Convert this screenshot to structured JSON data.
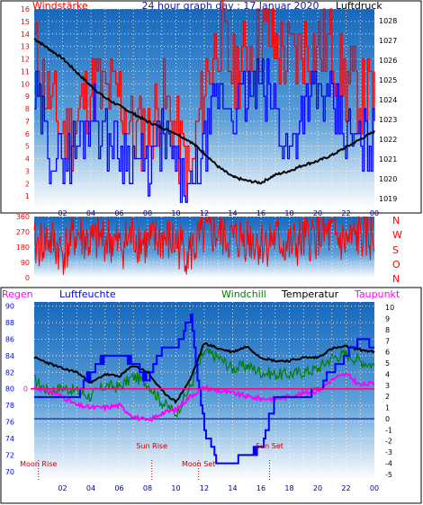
{
  "header": {
    "left_label": "Windstärke",
    "title": "24 hour graph day : 17 Januar 2020",
    "right_label": "Luftdruck"
  },
  "legend": {
    "regen": "Regen",
    "luftfeuchte": "Luftfeuchte",
    "windchill": "Windchill",
    "temperatur": "Temperatur",
    "taupunkt": "Taupunkt"
  },
  "colors": {
    "bg_top": "#1a6fc0",
    "bg_bottom": "#ffffff",
    "wind_speed": "#ff0000",
    "wind_avg": "#0000ff",
    "pressure": "#000000",
    "direction": "#ff0000",
    "humidity": "#0000ff",
    "windchill": "#008000",
    "temperature": "#000000",
    "dewpoint": "#ff00ff",
    "rain": "#ff0080",
    "grid": "#ffffff",
    "frame": "#1a1a80"
  },
  "x_ticks": [
    "02",
    "04",
    "06",
    "08",
    "10",
    "12",
    "14",
    "16",
    "18",
    "20",
    "22",
    "00"
  ],
  "chart_data": [
    {
      "type": "line",
      "title": "24 hour graph day : 17 Januar 2020",
      "ylabel_left": "Windstärke",
      "ylabel_right": "Luftdruck",
      "y_left_ticks": [
        "1",
        "2",
        "3",
        "4",
        "5",
        "6",
        "7",
        "8",
        "9",
        "10",
        "11",
        "12",
        "13",
        "14",
        "15",
        "16"
      ],
      "y_right_ticks": [
        "1019",
        "1020",
        "1021",
        "1022",
        "1023",
        "1024",
        "1025",
        "1026",
        "1027",
        "1028"
      ],
      "ylim_left": [
        0,
        16
      ],
      "ylim_right": [
        1018.5,
        1028.6
      ],
      "x_hours": [
        0,
        1,
        2,
        3,
        4,
        5,
        6,
        7,
        8,
        9,
        10,
        11,
        12,
        13,
        14,
        15,
        16,
        17,
        18,
        19,
        20,
        21,
        22,
        23,
        24
      ],
      "series": [
        {
          "values": [
            13,
            9,
            6,
            7,
            10,
            9,
            9,
            6,
            6,
            9,
            6,
            2,
            10,
            14,
            11,
            12,
            14,
            13,
            12,
            13,
            13,
            13,
            10,
            9,
            9
          ]
        },
        {
          "values": [
            9,
            5,
            4,
            5,
            8,
            6,
            5,
            4,
            3,
            6,
            3,
            1,
            5,
            9,
            8,
            9,
            10,
            8,
            4,
            9,
            9,
            8,
            6,
            5,
            6
          ]
        },
        {
          "values": [
            1027.1,
            1026.6,
            1026.1,
            1025.4,
            1024.7,
            1024.1,
            1023.7,
            1023.3,
            1022.9,
            1022.6,
            1022.3,
            1021.9,
            1021.3,
            1020.6,
            1020.1,
            1019.9,
            1019.8,
            1020.2,
            1020.4,
            1020.7,
            1020.9,
            1021.2,
            1021.6,
            1022.0,
            1022.4
          ]
        }
      ]
    },
    {
      "type": "line",
      "y_left_ticks": [
        "0",
        "90",
        "180",
        "270",
        "360"
      ],
      "y_right_ticks": [
        "N",
        "W",
        "S",
        "O",
        "N"
      ],
      "ylim": [
        0,
        360
      ],
      "x_hours": [
        0,
        1,
        2,
        3,
        4,
        5,
        6,
        7,
        8,
        9,
        10,
        11,
        12,
        13,
        14,
        15,
        16,
        17,
        18,
        19,
        20,
        21,
        22,
        23,
        24
      ],
      "series": [
        {
          "values": [
            180,
            230,
            150,
            260,
            200,
            240,
            180,
            250,
            190,
            230,
            200,
            150,
            250,
            260,
            220,
            240,
            200,
            230,
            180,
            210,
            260,
            240,
            200,
            250,
            220
          ]
        }
      ]
    },
    {
      "type": "line",
      "y_left_ticks": [
        "70",
        "72",
        "74",
        "76",
        "78",
        "80",
        "82",
        "84",
        "86",
        "88",
        "90"
      ],
      "y_right_ticks": [
        "-5",
        "-4",
        "-3",
        "-2",
        "-1",
        "0",
        "1",
        "2",
        "3",
        "4",
        "5",
        "6",
        "7",
        "8",
        "9",
        "10"
      ],
      "ylim_left": [
        69,
        90.5
      ],
      "ylim_right": [
        -5.5,
        10.5
      ],
      "rain_value": "0",
      "annotations": [
        "Moon Rise",
        "Sun Rise",
        "Moon Set",
        "Sun Set"
      ],
      "x_hours": [
        0,
        1,
        2,
        3,
        4,
        5,
        6,
        7,
        8,
        9,
        10,
        11,
        12,
        13,
        14,
        15,
        16,
        17,
        18,
        19,
        20,
        21,
        22,
        23,
        24
      ],
      "series": [
        {
          "values": [
            79,
            79,
            79,
            79,
            82,
            84,
            84,
            83,
            81,
            85,
            85,
            89,
            75,
            71,
            71,
            72,
            73,
            79,
            79,
            79,
            80,
            82,
            84,
            86,
            85
          ]
        },
        {
          "values": [
            3.5,
            2.5,
            2.8,
            2.5,
            2.0,
            3.0,
            2.8,
            3.8,
            3.2,
            1.5,
            0.5,
            2.8,
            6.0,
            5.5,
            4.5,
            4.8,
            4.2,
            4.0,
            4.0,
            4.2,
            4.5,
            5.5,
            5.8,
            5.2,
            4.8
          ]
        },
        {
          "values": [
            5.5,
            5.0,
            4.5,
            4.2,
            3.2,
            4.0,
            3.8,
            4.8,
            4.2,
            2.5,
            1.5,
            3.5,
            6.8,
            6.3,
            6.0,
            6.5,
            5.5,
            5.2,
            5.2,
            5.5,
            5.5,
            6.3,
            6.5,
            6.2,
            6.0
          ]
        },
        {
          "values": [
            2.8,
            2.5,
            2.0,
            1.2,
            1.0,
            1.0,
            1.2,
            0.2,
            -0.2,
            0.5,
            0.8,
            2.0,
            2.8,
            2.5,
            2.3,
            2.0,
            1.8,
            1.8,
            2.0,
            2.3,
            2.5,
            3.5,
            4.0,
            3.0,
            3.2
          ]
        },
        {
          "values": [
            0,
            0,
            0,
            0,
            0,
            0,
            0,
            0,
            0,
            0,
            0,
            0,
            0,
            0,
            0,
            0,
            0,
            0,
            0,
            0,
            0,
            0,
            0,
            0,
            0
          ]
        }
      ]
    }
  ]
}
